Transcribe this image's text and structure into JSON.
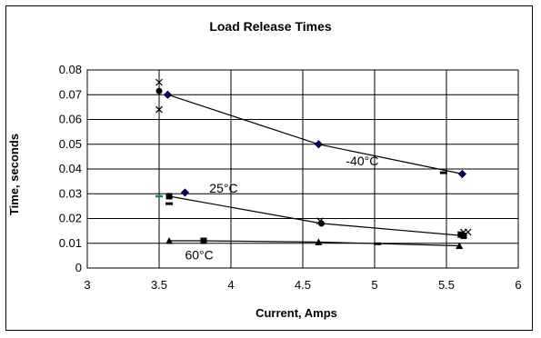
{
  "chart_data": {
    "type": "scatter",
    "title": "Load Release Times",
    "xlabel": "Current, Amps",
    "ylabel": "Time, seconds",
    "xlim": [
      3,
      6
    ],
    "ylim": [
      0,
      0.08
    ],
    "x_ticks": [
      "3",
      "3.5",
      "4",
      "4.5",
      "5",
      "5.5",
      "6"
    ],
    "y_ticks": [
      "0",
      "0.01",
      "0.02",
      "0.03",
      "0.04",
      "0.05",
      "0.06",
      "0.07",
      "0.08"
    ],
    "grid": "vertical and horizontal major gridlines",
    "series": [
      {
        "label": "-40°C",
        "trend": [
          [
            3.56,
            0.07
          ],
          [
            4.61,
            0.05
          ],
          [
            5.61,
            0.038
          ]
        ],
        "points": [
          {
            "x": 3.56,
            "y": 0.07,
            "marker": "diamond"
          },
          {
            "x": 4.61,
            "y": 0.05,
            "marker": "diamond"
          },
          {
            "x": 5.61,
            "y": 0.038,
            "marker": "diamond"
          },
          {
            "x": 3.5,
            "y": 0.075,
            "marker": "x"
          },
          {
            "x": 3.5,
            "y": 0.064,
            "marker": "x"
          },
          {
            "x": 3.5,
            "y": 0.0715,
            "marker": "circle"
          },
          {
            "x": 5.48,
            "y": 0.0385,
            "marker": "dash"
          }
        ]
      },
      {
        "label": "25°C",
        "trend": [
          [
            3.57,
            0.029
          ],
          [
            4.63,
            0.018
          ],
          [
            5.63,
            0.013
          ]
        ],
        "points": [
          {
            "x": 3.57,
            "y": 0.029,
            "marker": "square"
          },
          {
            "x": 3.57,
            "y": 0.026,
            "marker": "dash"
          },
          {
            "x": 3.68,
            "y": 0.0305,
            "marker": "diamond"
          },
          {
            "x": 4.62,
            "y": 0.019,
            "marker": "x"
          },
          {
            "x": 4.63,
            "y": 0.018,
            "marker": "circle"
          },
          {
            "x": 5.6,
            "y": 0.0135,
            "marker": "square"
          },
          {
            "x": 5.62,
            "y": 0.013,
            "marker": "square"
          },
          {
            "x": 5.62,
            "y": 0.0145,
            "marker": "x"
          },
          {
            "x": 5.65,
            "y": 0.0145,
            "marker": "x"
          },
          {
            "x": 3.5,
            "y": 0.029,
            "marker": "dash-teal"
          }
        ]
      },
      {
        "label": "60°C",
        "trend": [
          [
            3.57,
            0.011
          ],
          [
            3.81,
            0.011
          ],
          [
            4.61,
            0.0105
          ],
          [
            5.59,
            0.009
          ]
        ],
        "points": [
          {
            "x": 3.57,
            "y": 0.011,
            "marker": "triangle"
          },
          {
            "x": 3.81,
            "y": 0.011,
            "marker": "square"
          },
          {
            "x": 4.61,
            "y": 0.0105,
            "marker": "triangle"
          },
          {
            "x": 5.02,
            "y": 0.0098,
            "marker": "dash"
          },
          {
            "x": 5.59,
            "y": 0.009,
            "marker": "triangle"
          }
        ]
      }
    ],
    "annotations": [
      {
        "text": "-40°C",
        "x": 4.8,
        "y": 0.0415
      },
      {
        "text": "25°C",
        "x": 3.85,
        "y": 0.0305
      },
      {
        "text": "60°C",
        "x": 3.68,
        "y": 0.0035
      }
    ],
    "colors": {
      "diamond_fill": "#000080",
      "trend_line": "#000000",
      "teal": "#008080"
    }
  }
}
